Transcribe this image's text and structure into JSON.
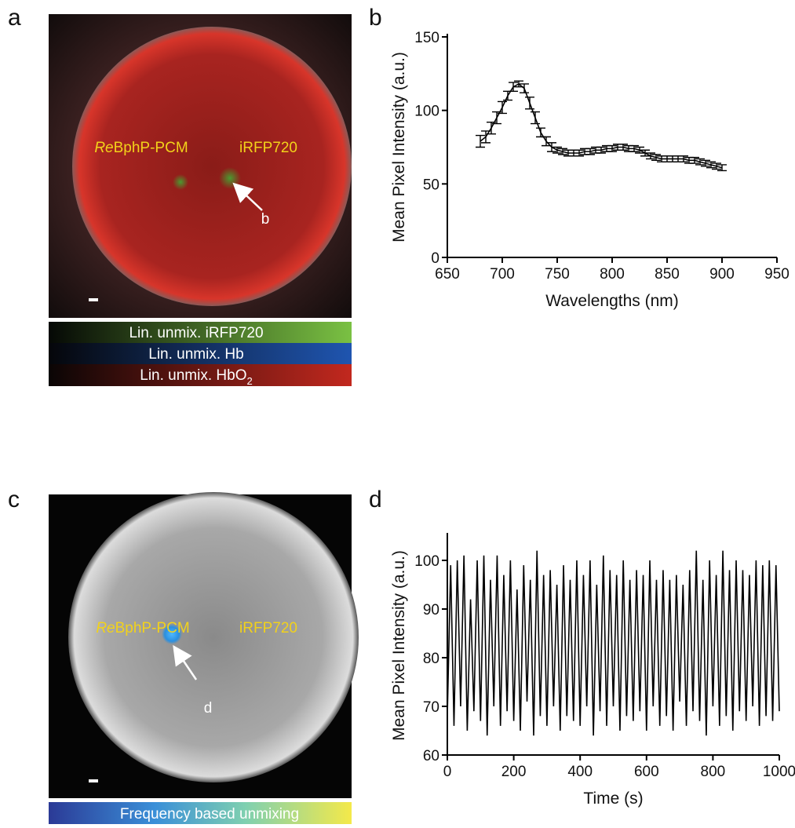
{
  "panel_letters": [
    "a",
    "b",
    "c",
    "d"
  ],
  "image_a": {
    "labels": [
      {
        "italic": "Re",
        "text": "BphP-PCM"
      },
      {
        "text": "iRFP720"
      }
    ],
    "arrow_label": "b",
    "colorbars": [
      {
        "text": "Lin. unmix. iRFP720"
      },
      {
        "text": "Lin. unmix. Hb"
      },
      {
        "text": "Lin. unmix. HbO",
        "sub": "2"
      }
    ]
  },
  "image_c": {
    "labels": [
      {
        "italic": "Re",
        "text": "BphP-PCM"
      },
      {
        "text": "iRFP720"
      }
    ],
    "arrow_label": "d",
    "colorbar": "Frequency based unmixing"
  },
  "chart_data": [
    {
      "type": "line",
      "x_label": "Wavelengths (nm)",
      "y_label": "Mean Pixel Intensity (a.u.)",
      "x": [
        680,
        685,
        690,
        695,
        700,
        705,
        710,
        715,
        720,
        725,
        730,
        735,
        740,
        745,
        750,
        755,
        760,
        765,
        770,
        775,
        780,
        785,
        790,
        795,
        800,
        805,
        810,
        815,
        820,
        825,
        830,
        835,
        840,
        845,
        850,
        855,
        860,
        865,
        870,
        875,
        880,
        885,
        890,
        895,
        900
      ],
      "series": [
        {
          "color": "#000000",
          "values": [
            79,
            82,
            88,
            95,
            102,
            110,
            116,
            118,
            115,
            105,
            95,
            85,
            79,
            75,
            73,
            72,
            71,
            71,
            71,
            72,
            72,
            73,
            73,
            74,
            74,
            75,
            75,
            74,
            74,
            73,
            71,
            69,
            68,
            67,
            67,
            67,
            67,
            67,
            66,
            66,
            65,
            64,
            63,
            62,
            61
          ],
          "errors": [
            4,
            4,
            4,
            4,
            4,
            3,
            3,
            2,
            3,
            4,
            4,
            3,
            3,
            3,
            2,
            2,
            2,
            2,
            2,
            2,
            2,
            2,
            2,
            2,
            2,
            2,
            2,
            2,
            2,
            2,
            2,
            2,
            2,
            2,
            2,
            2,
            2,
            2,
            2,
            2,
            2,
            2,
            2,
            2,
            2
          ]
        }
      ],
      "xlim": [
        650,
        950
      ],
      "ylim": [
        0,
        150
      ],
      "xticks": [
        650,
        700,
        750,
        800,
        850,
        900,
        950
      ],
      "yticks": [
        0,
        50,
        100,
        150
      ]
    },
    {
      "type": "line",
      "x_label": "Time (s)",
      "y_label": "Mean Pixel Intensity (a.u.)",
      "x": [
        0,
        10,
        20,
        30,
        40,
        50,
        60,
        70,
        80,
        90,
        100,
        110,
        120,
        130,
        140,
        150,
        160,
        170,
        180,
        190,
        200,
        210,
        220,
        230,
        240,
        250,
        260,
        270,
        280,
        290,
        300,
        310,
        320,
        330,
        340,
        350,
        360,
        370,
        380,
        390,
        400,
        410,
        420,
        430,
        440,
        450,
        460,
        470,
        480,
        490,
        500,
        510,
        520,
        530,
        540,
        550,
        560,
        570,
        580,
        590,
        600,
        610,
        620,
        630,
        640,
        650,
        660,
        670,
        680,
        690,
        700,
        710,
        720,
        730,
        740,
        750,
        760,
        770,
        780,
        790,
        800,
        810,
        820,
        830,
        840,
        850,
        860,
        870,
        880,
        890,
        900,
        910,
        920,
        930,
        940,
        950,
        960,
        970,
        980,
        990,
        1000
      ],
      "series": [
        {
          "color": "#000000",
          "values": [
            68,
            99,
            66,
            100,
            70,
            101,
            65,
            92,
            69,
            100,
            67,
            101,
            64,
            96,
            70,
            101,
            66,
            97,
            69,
            100,
            67,
            94,
            65,
            99,
            71,
            96,
            64,
            102,
            68,
            97,
            66,
            98,
            70,
            95,
            65,
            99,
            68,
            96,
            67,
            100,
            66,
            97,
            70,
            100,
            64,
            95,
            69,
            101,
            66,
            98,
            70,
            97,
            65,
            100,
            68,
            96,
            67,
            98,
            69,
            97,
            65,
            100,
            70,
            96,
            66,
            98,
            68,
            96,
            65,
            97,
            71,
            95,
            66,
            98,
            69,
            102,
            67,
            96,
            64,
            100,
            70,
            97,
            66,
            102,
            68,
            98,
            65,
            100,
            69,
            98,
            67,
            97,
            70,
            100,
            66,
            99,
            68,
            100,
            67,
            99,
            69
          ]
        }
      ],
      "xlim": [
        0,
        1000
      ],
      "ylim": [
        60,
        105
      ],
      "xticks": [
        0,
        200,
        400,
        600,
        800,
        1000
      ],
      "yticks": [
        60,
        70,
        80,
        90,
        100
      ]
    }
  ]
}
